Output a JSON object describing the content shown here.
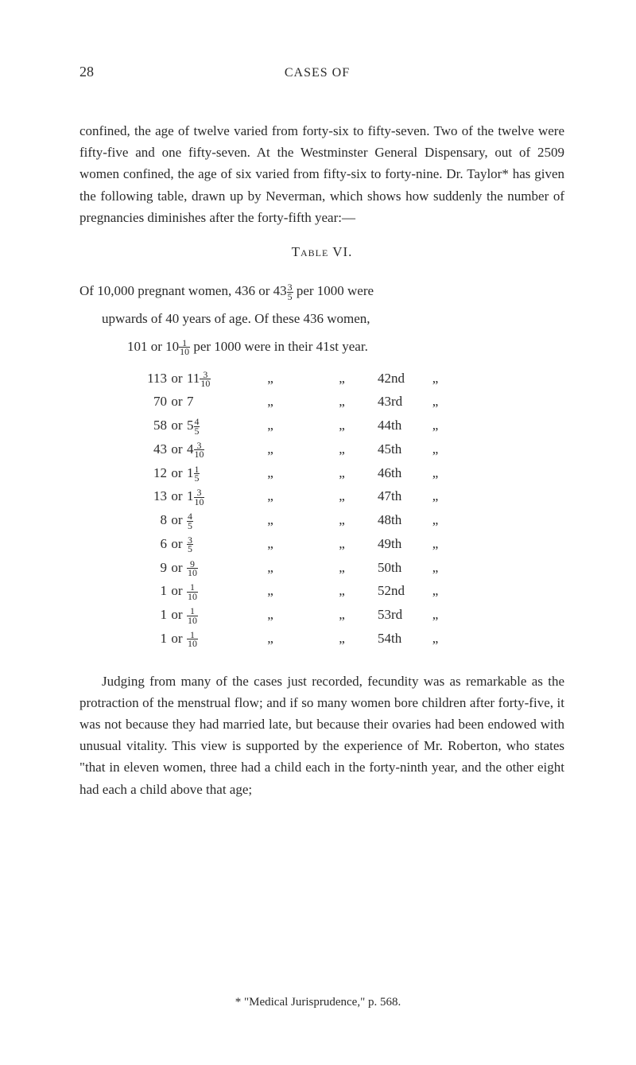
{
  "page": {
    "number": "28",
    "running_head": "CASES OF"
  },
  "paragraph1": "confined, the age of twelve varied from forty-six to fifty-seven. Two of the twelve were fifty-five and one fifty-seven. At the Westminster General Dispensary, out of 2509 women confined, the age of six varied from fifty-six to forty-nine. Dr. Taylor* has given the following table, drawn up by Neverman, which shows how suddenly the number of pregnancies diminishes after the forty-fifth year:—",
  "table_title": "Table VI.",
  "intro": {
    "line1a": "Of 10,000 pregnant women, 436 or 43",
    "line1_frac_top": "3",
    "line1_frac_bot": "5",
    "line1b": " per 1000 were",
    "line2": "upwards of 40 years of age.   Of these 436 women,",
    "line3a": "101 or 10",
    "line3_frac_top": "1",
    "line3_frac_bot": "10",
    "line3b": " per 1000 were in their 41st year."
  },
  "rows": [
    {
      "n": "113",
      "or": "or",
      "frac_int": "11",
      "frac_top": "3",
      "frac_bot": "10",
      "d1": "„",
      "d2": "„",
      "year": "42nd",
      "d3": "„"
    },
    {
      "n": "70",
      "or": "or",
      "frac_int": "7",
      "frac_top": "",
      "frac_bot": "",
      "d1": "„",
      "d2": "„",
      "year": "43rd",
      "d3": "„"
    },
    {
      "n": "58",
      "or": "or",
      "frac_int": "5",
      "frac_top": "4",
      "frac_bot": "5",
      "d1": "„",
      "d2": "„",
      "year": "44th",
      "d3": "„"
    },
    {
      "n": "43",
      "or": "or",
      "frac_int": "4",
      "frac_top": "3",
      "frac_bot": "10",
      "d1": "„",
      "d2": "„",
      "year": "45th",
      "d3": "„"
    },
    {
      "n": "12",
      "or": "or",
      "frac_int": "1",
      "frac_top": "1",
      "frac_bot": "5",
      "d1": "„",
      "d2": "„",
      "year": "46th",
      "d3": "„"
    },
    {
      "n": "13",
      "or": "or",
      "frac_int": "1",
      "frac_top": "3",
      "frac_bot": "10",
      "d1": "„",
      "d2": "„",
      "year": "47th",
      "d3": "„"
    },
    {
      "n": "8",
      "or": "or",
      "frac_int": "",
      "frac_top": "4",
      "frac_bot": "5",
      "d1": "„",
      "d2": "„",
      "year": "48th",
      "d3": "„"
    },
    {
      "n": "6",
      "or": "or",
      "frac_int": "",
      "frac_top": "3",
      "frac_bot": "5",
      "d1": "„",
      "d2": "„",
      "year": "49th",
      "d3": "„"
    },
    {
      "n": "9",
      "or": "or",
      "frac_int": "",
      "frac_top": "9",
      "frac_bot": "10",
      "d1": "„",
      "d2": "„",
      "year": "50th",
      "d3": "„"
    },
    {
      "n": "1",
      "or": "or",
      "frac_int": "",
      "frac_top": "1",
      "frac_bot": "10",
      "d1": "„",
      "d2": "„",
      "year": "52nd",
      "d3": "„"
    },
    {
      "n": "1",
      "or": "or",
      "frac_int": "",
      "frac_top": "1",
      "frac_bot": "10",
      "d1": "„",
      "d2": "„",
      "year": "53rd",
      "d3": "„"
    },
    {
      "n": "1",
      "or": "or",
      "frac_int": "",
      "frac_top": "1",
      "frac_bot": "10",
      "d1": "„",
      "d2": "„",
      "year": "54th",
      "d3": "„"
    }
  ],
  "paragraph2": "Judging from many of the cases just recorded, fecundity was as remarkable as the protraction of the menstrual flow; and if so many women bore children after forty-five, it was not because they had married late, but because their ovaries had been endowed with unusual vitality. This view is supported by the experience of Mr. Roberton, who states \"that in eleven women, three had a child each in the forty-ninth year, and the other eight had each a child above that age;",
  "footnote": "* \"Medical Jurisprudence,\" p. 568."
}
